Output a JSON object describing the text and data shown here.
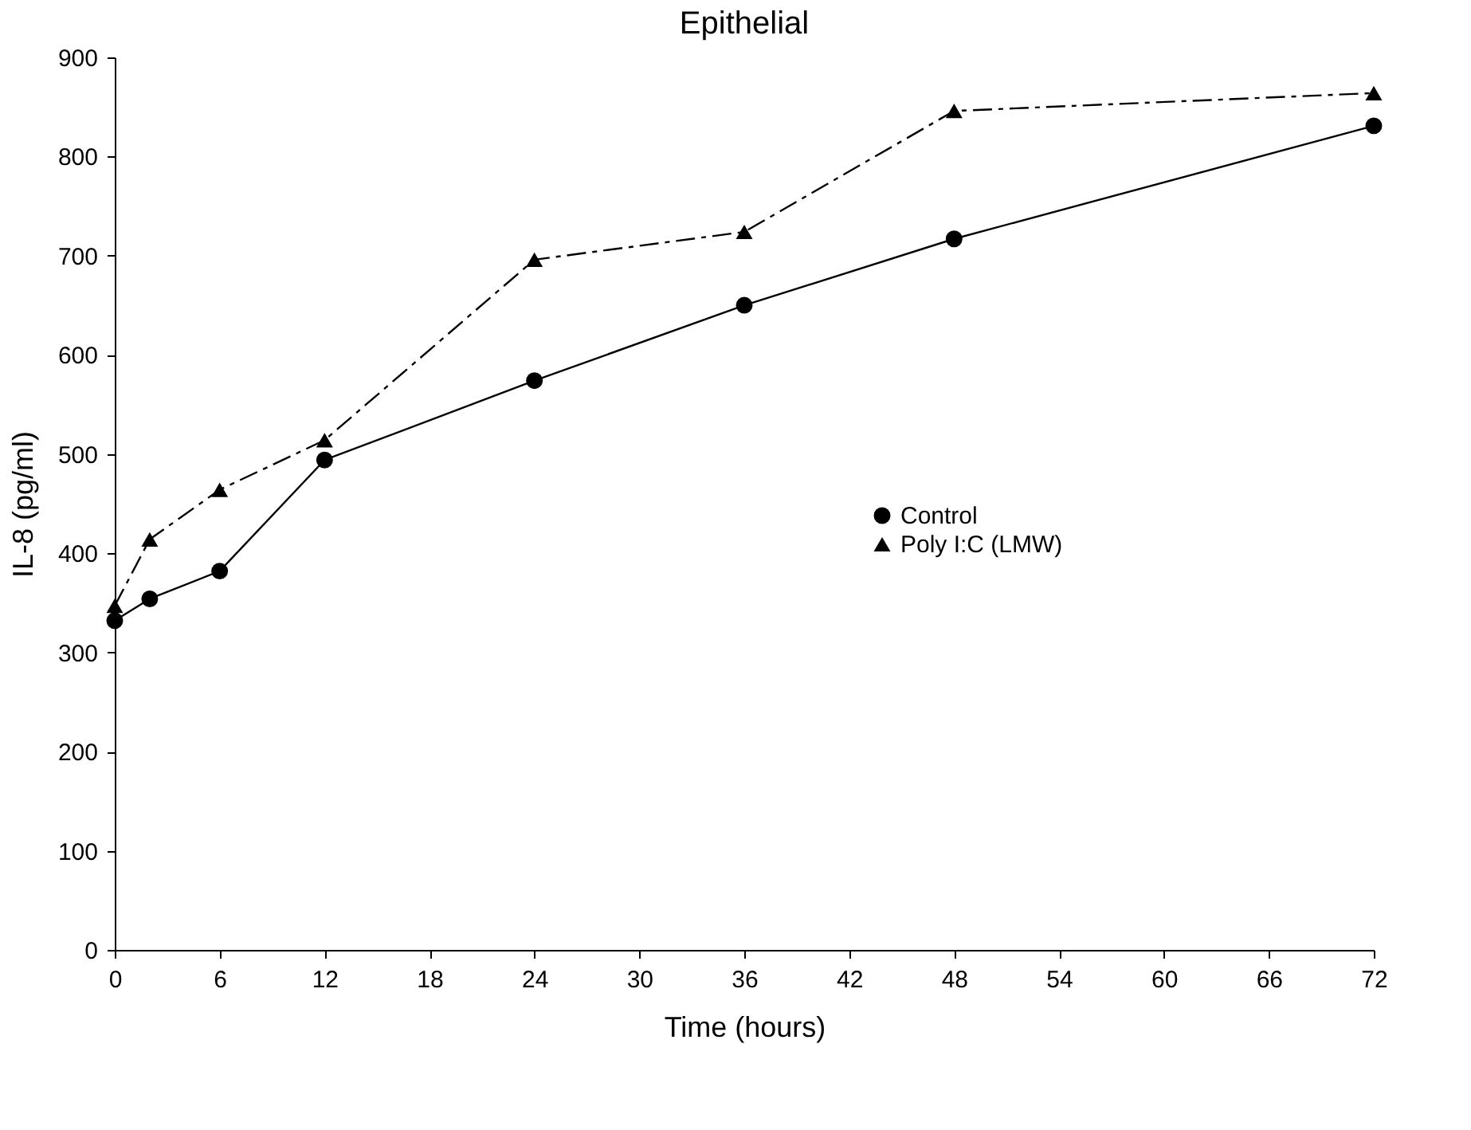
{
  "chart_data": {
    "type": "line",
    "title": "Epithelial",
    "xlabel": "Time (hours)",
    "ylabel": "IL-8 (pg/ml)",
    "xlim": [
      0,
      72
    ],
    "xticks": [
      0,
      6,
      12,
      18,
      24,
      30,
      36,
      42,
      48,
      54,
      60,
      66,
      72
    ],
    "ylim": [
      0,
      900
    ],
    "yticks": [
      0,
      100,
      200,
      300,
      400,
      500,
      600,
      700,
      800,
      900
    ],
    "x": [
      0,
      2,
      6,
      12,
      24,
      36,
      48,
      72
    ],
    "series": [
      {
        "name": "Control",
        "color": "#000000",
        "marker": "circle",
        "line_style": "solid",
        "values": [
          332,
          354,
          382,
          494,
          574,
          650,
          717,
          831
        ]
      },
      {
        "name": "Poly I:C (LMW)",
        "color": "#000000",
        "marker": "triangle",
        "line_style": "dashed",
        "values": [
          347,
          414,
          464,
          514,
          696,
          724,
          846,
          864
        ]
      }
    ],
    "legend": "right",
    "grid": false
  }
}
